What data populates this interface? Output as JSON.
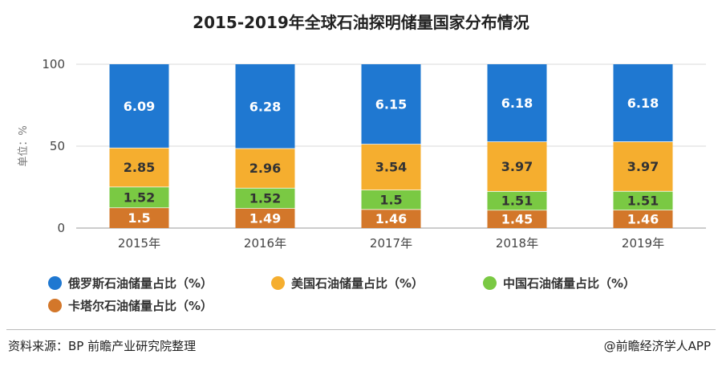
{
  "title": "2015-2019年全球石油探明储量国家分布情况",
  "source_text": "资料来源：BP 前瞻产业研究院整理",
  "credit_text": "@前瞻经济学人APP",
  "chart_data": {
    "type": "bar",
    "stacked": true,
    "title": "2015-2019年全球石油探明储量国家分布情况",
    "ylabel": "单位：%",
    "xlabel": "",
    "ylim": [
      0,
      100
    ],
    "yticks": [
      0,
      50,
      100
    ],
    "categories": [
      "2015年",
      "2016年",
      "2017年",
      "2018年",
      "2019年"
    ],
    "series": [
      {
        "name": "卡塔尔石油储量占比（%）",
        "color": "#d3772a",
        "values": [
          1.5,
          1.49,
          1.46,
          1.45,
          1.46
        ]
      },
      {
        "name": "中国石油储量占比（%）",
        "color": "#7ac943",
        "values": [
          1.52,
          1.52,
          1.5,
          1.51,
          1.51
        ]
      },
      {
        "name": "美国石油储量占比（%）",
        "color": "#f5ae2f",
        "values": [
          2.85,
          2.96,
          3.54,
          3.97,
          3.97
        ]
      },
      {
        "name": "俄罗斯石油储量占比（%）",
        "color": "#1f78d1",
        "values": [
          6.09,
          6.28,
          6.15,
          6.18,
          6.18
        ]
      }
    ],
    "segment_label_colors": [
      "#ffffff",
      "#333333",
      "#333333",
      "#ffffff"
    ],
    "legend_order": [
      3,
      2,
      1,
      0
    ],
    "grid": true,
    "legend_position": "bottom"
  }
}
